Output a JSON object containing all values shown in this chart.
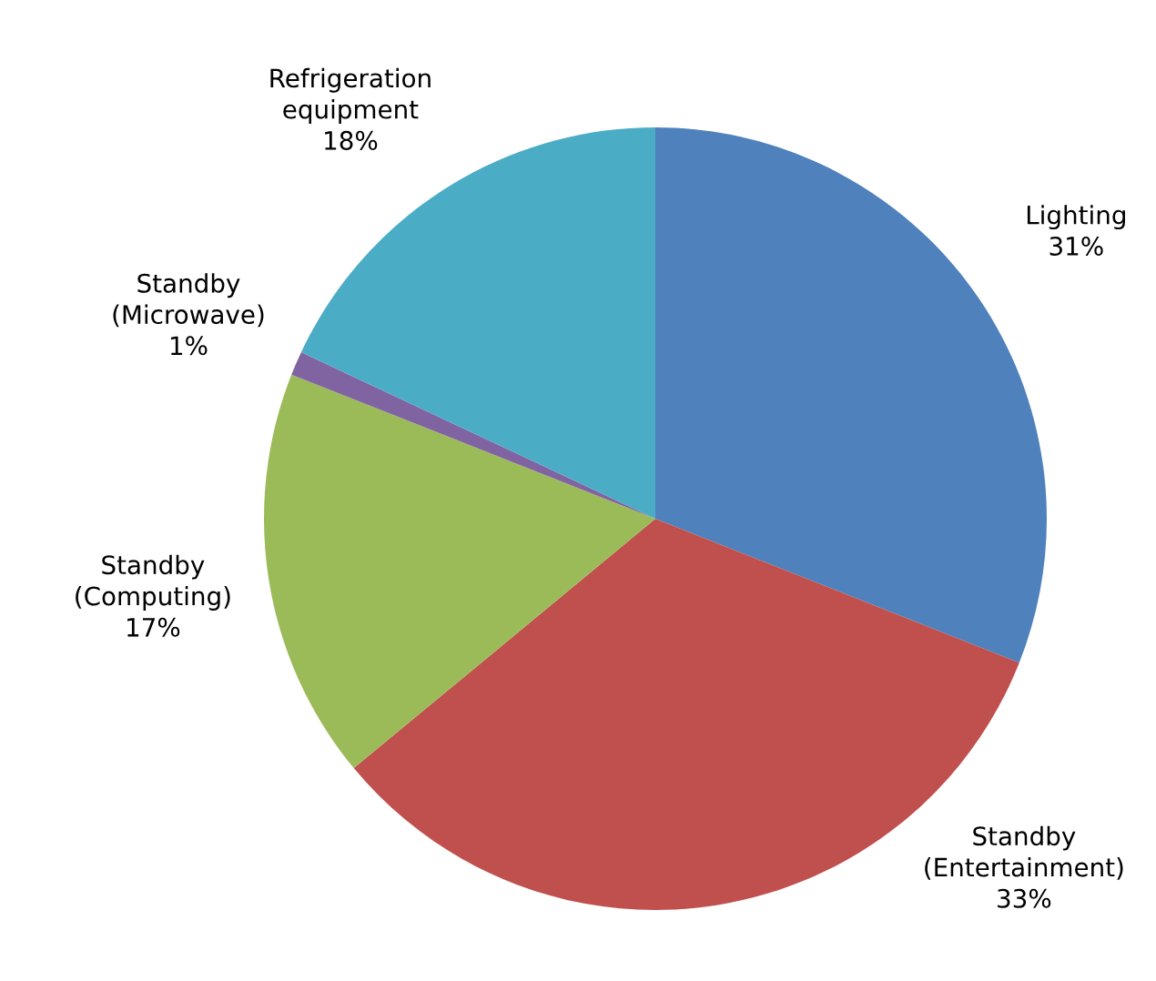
{
  "chart_data": {
    "type": "pie",
    "categories": [
      "Lighting",
      "Standby (Entertainment)",
      "Standby (Computing)",
      "Standby (Microwave)",
      "Refrigeration equipment"
    ],
    "values": [
      31,
      33,
      17,
      1,
      18
    ],
    "value_labels": [
      "31%",
      "33%",
      "17%",
      "1%",
      "18%"
    ],
    "colors": [
      "#4f81bd",
      "#c0504d",
      "#9bbb59",
      "#8064a2",
      "#4bacc6"
    ]
  }
}
